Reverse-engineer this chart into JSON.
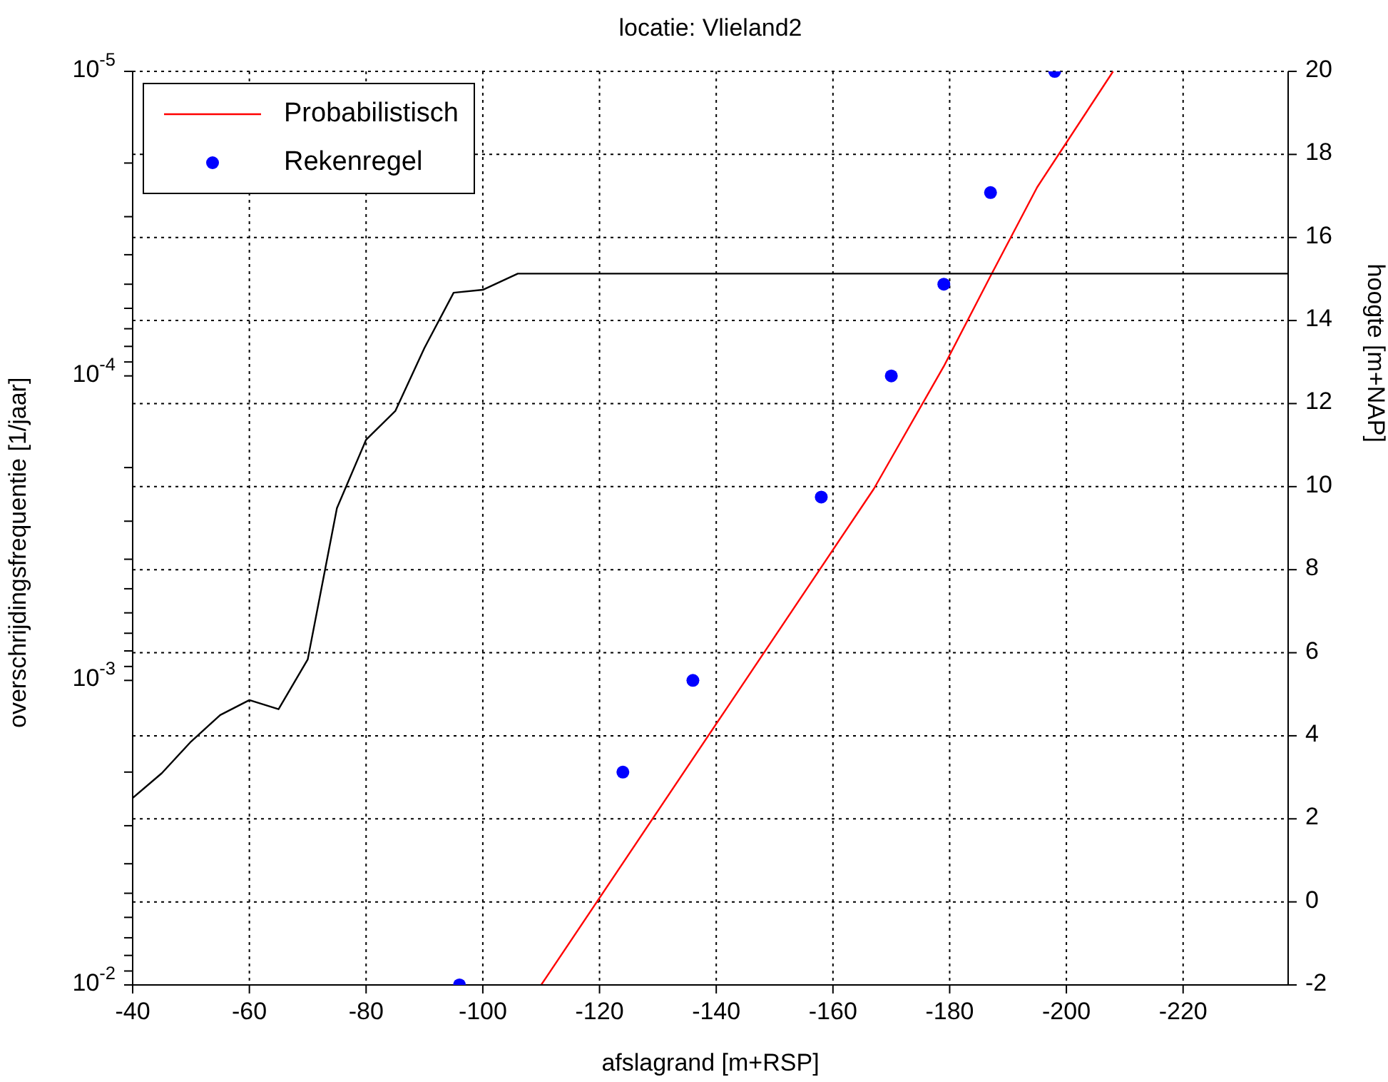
{
  "chart_data": {
    "type": "line",
    "title": "locatie: Vlieland2",
    "xlabel": "afslagrand [m+RSP]",
    "ylabel": "overschrijdingsfrequentie [1/jaar]",
    "y2label": "hoogte [m+NAP]",
    "series": [
      {
        "name": "Probabilistisch",
        "color": "#ff0000",
        "marker": "none",
        "x": [
          -110,
          -167,
          -179,
          -187,
          -195,
          -208
        ],
        "values": [
          0.01,
          0.000235,
          9.3e-05,
          4.7e-05,
          2.4e-05,
          1e-05
        ]
      },
      {
        "name": "Rekenregel",
        "type": "scatter",
        "color": "#0000ff",
        "marker": "circle",
        "x": [
          -96,
          -124,
          -136,
          -158,
          -170,
          -179,
          -187,
          -198
        ],
        "values": [
          0.01,
          0.002,
          0.001,
          0.00025,
          0.0001,
          5e-05,
          2.5e-05,
          1e-05
        ]
      },
      {
        "type": "line",
        "axis": "y2",
        "color": "#000000",
        "marker": "none",
        "x": [
          -40,
          -45,
          -50,
          -55,
          -60,
          -65,
          -70,
          -75,
          -80,
          -85,
          -90,
          -95,
          -100,
          -106,
          -238
        ],
        "values": [
          2.5,
          3.1,
          3.86,
          4.5,
          4.86,
          4.64,
          5.84,
          9.48,
          11.13,
          11.82,
          13.34,
          14.67,
          14.74,
          15.13,
          15.13
        ]
      }
    ],
    "xlim": [
      -40,
      -238
    ],
    "xticks": [
      -40,
      -60,
      -80,
      -100,
      -120,
      -140,
      -160,
      -180,
      -200,
      -220
    ],
    "log": "y",
    "ylim": [
      0.01,
      1e-05
    ],
    "yticks": [
      {
        "value": 1e-05,
        "label": "10$^{-5}$"
      },
      {
        "value": 2e-05,
        "label": null
      },
      {
        "value": 3e-05,
        "label": null
      },
      {
        "value": 4e-05,
        "label": null
      },
      {
        "value": 5e-05,
        "label": null
      },
      {
        "value": 6e-05,
        "label": null
      },
      {
        "value": 7e-05,
        "label": null
      },
      {
        "value": 8e-05,
        "label": null
      },
      {
        "value": 9e-05,
        "label": null
      },
      {
        "value": 0.0001,
        "label": "10$^{-4}$"
      },
      {
        "value": 0.0002,
        "label": null
      },
      {
        "value": 0.0003,
        "label": null
      },
      {
        "value": 0.0004,
        "label": null
      },
      {
        "value": 0.0005,
        "label": null
      },
      {
        "value": 0.0006,
        "label": null
      },
      {
        "value": 0.0007,
        "label": null
      },
      {
        "value": 0.0008,
        "label": null
      },
      {
        "value": 0.0009,
        "label": null
      },
      {
        "value": 0.001,
        "label": "10$^{-3}$"
      },
      {
        "value": 0.002,
        "label": null
      },
      {
        "value": 0.003,
        "label": null
      },
      {
        "value": 0.004,
        "label": null
      },
      {
        "value": 0.005,
        "label": null
      },
      {
        "value": 0.006,
        "label": null
      },
      {
        "value": 0.007,
        "label": null
      },
      {
        "value": 0.008,
        "label": null
      },
      {
        "value": 0.009,
        "label": null
      },
      {
        "value": 0.01,
        "label": "10$^{-2}$"
      }
    ],
    "y2lim": [
      -2,
      20
    ],
    "y2ticks": [
      -2,
      0,
      2,
      4,
      6,
      8,
      10,
      12,
      14,
      16,
      18,
      20
    ],
    "grid": true,
    "legend": "top left"
  }
}
